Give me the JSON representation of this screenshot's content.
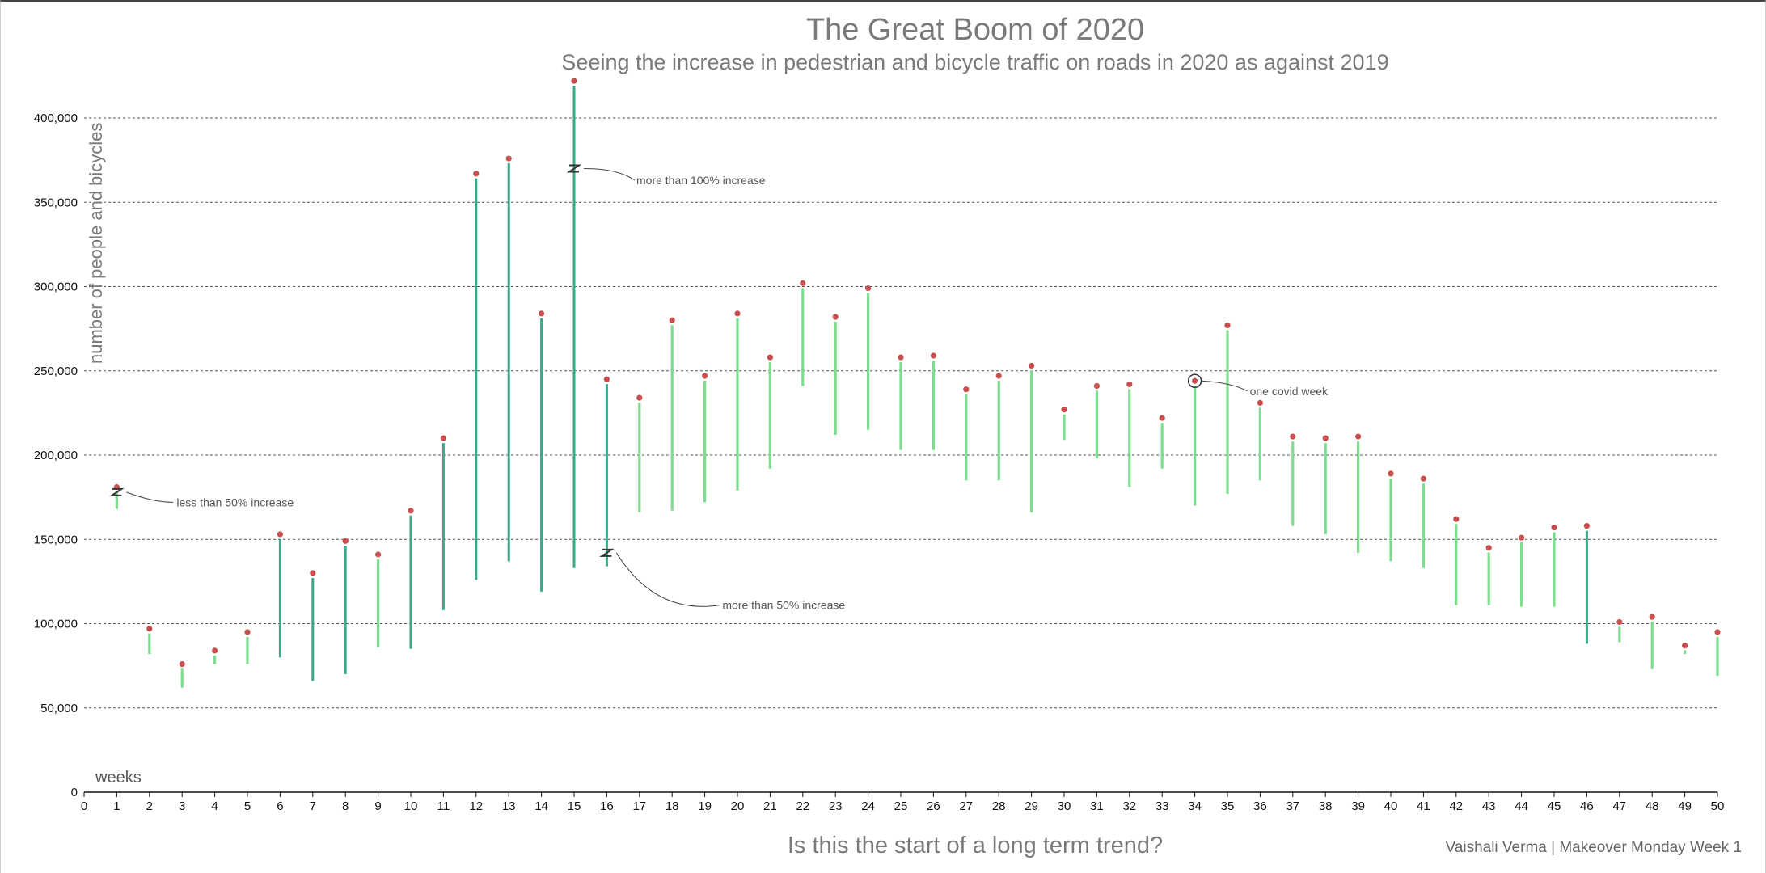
{
  "chart_data": {
    "type": "bar",
    "title": "The Great Boom of 2020",
    "subtitle": "Seeing the increase in pedestrian and bicycle traffic on roads in 2020 as against 2019",
    "xlabel": "Is this the start of a long term trend?",
    "xlabel_unit": "weeks",
    "ylabel": "number of people and bicycles",
    "credit": "Vaishali Verma | Makeover Monday Week 1",
    "xlim": [
      0,
      50
    ],
    "ylim": [
      0,
      400000
    ],
    "y_ticks": [
      "0",
      "50,000",
      "100,000",
      "150,000",
      "200,000",
      "250,000",
      "300,000",
      "350,000",
      "400,000"
    ],
    "y_tick_values": [
      0,
      50000,
      100000,
      150000,
      200000,
      250000,
      300000,
      350000,
      400000
    ],
    "grid": true,
    "weeks": [
      1,
      2,
      3,
      4,
      5,
      6,
      7,
      8,
      9,
      10,
      11,
      12,
      13,
      14,
      15,
      16,
      17,
      18,
      19,
      20,
      21,
      22,
      23,
      24,
      25,
      26,
      27,
      28,
      29,
      30,
      31,
      32,
      33,
      34,
      35,
      36,
      37,
      38,
      39,
      40,
      41,
      42,
      43,
      44,
      45,
      46,
      47,
      48,
      49,
      50
    ],
    "series": [
      {
        "values_2019": [
          168000,
          82000,
          62000,
          76000,
          76000,
          80000,
          66000,
          70000,
          86000,
          85000,
          108000,
          126000,
          137000,
          119000,
          133000,
          134000,
          166000,
          167000,
          172000,
          179000,
          192000,
          241000,
          212000,
          215000,
          203000,
          203000,
          185000,
          185000,
          166000,
          209000,
          198000,
          181000,
          192000,
          170000,
          177000,
          185000,
          158000,
          153000,
          142000,
          137000,
          133000,
          111000,
          111000,
          110000,
          110000,
          88000,
          89000,
          73000,
          82000,
          69000
        ]
      },
      {
        "values_2020": [
          181000,
          97000,
          76000,
          84000,
          95000,
          153000,
          130000,
          149000,
          141000,
          167000,
          210000,
          367000,
          376000,
          284000,
          422000,
          245000,
          234000,
          280000,
          247000,
          284000,
          258000,
          302000,
          282000,
          299000,
          258000,
          259000,
          239000,
          247000,
          253000,
          227000,
          241000,
          242000,
          222000,
          244000,
          277000,
          231000,
          211000,
          210000,
          211000,
          189000,
          186000,
          162000,
          145000,
          151000,
          157000,
          158000,
          101000,
          104000,
          87000,
          95000
        ]
      }
    ],
    "strong_weeks": [
      6,
      7,
      8,
      10,
      11,
      12,
      13,
      14,
      15,
      16,
      46
    ],
    "annotations": [
      {
        "week": 1,
        "text": "less than 50% increase"
      },
      {
        "week": 15,
        "text": "more than 100% increase"
      },
      {
        "week": 16,
        "text": "more than 50% increase"
      },
      {
        "week": 34,
        "text": "one covid week"
      }
    ],
    "colors": {
      "light": "#7ddc8e",
      "strong": "#3aa98a",
      "dot": "#c94f4f",
      "grid": "#555555"
    }
  }
}
